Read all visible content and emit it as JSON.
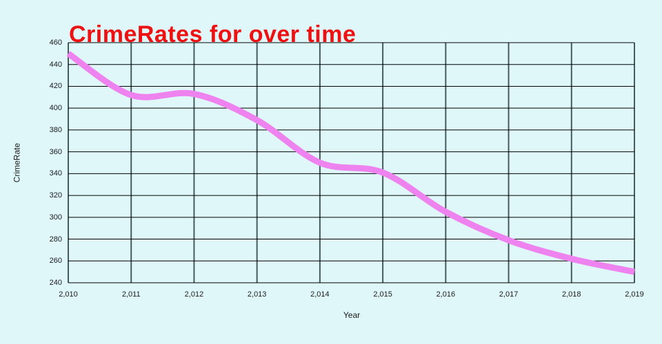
{
  "page": {
    "background": "#e0f7fa"
  },
  "header": {
    "title": "CrimeRates for over time",
    "title_color": "#ee1111"
  },
  "chart_data": {
    "type": "line",
    "title": "CrimeRates for over time",
    "xlabel": "Year",
    "ylabel": "CrimeRate",
    "x": [
      2010,
      2011,
      2012,
      2013,
      2014,
      2015,
      2016,
      2017,
      2018,
      2019
    ],
    "x_tick_labels": [
      "2,010",
      "2,011",
      "2,012",
      "2,013",
      "2,014",
      "2,015",
      "2,016",
      "2,017",
      "2,018",
      "2,019"
    ],
    "yticks": [
      240,
      260,
      280,
      300,
      320,
      340,
      360,
      380,
      400,
      420,
      440,
      460
    ],
    "ylim": [
      240,
      460
    ],
    "xlim": [
      2010,
      2019
    ],
    "grid": true,
    "legend_position": "none",
    "smooth": true,
    "series": [
      {
        "name": "CrimeRate",
        "color": "#ee82ee",
        "line_width": 9,
        "values": [
          450,
          412,
          413,
          389,
          350,
          341,
          305,
          279,
          262,
          250
        ]
      }
    ],
    "styles": {
      "grid_vertical_color": "#455a5a",
      "grid_horizontal_color": "#000000",
      "tick_label_color": "#1a1a1a"
    }
  }
}
